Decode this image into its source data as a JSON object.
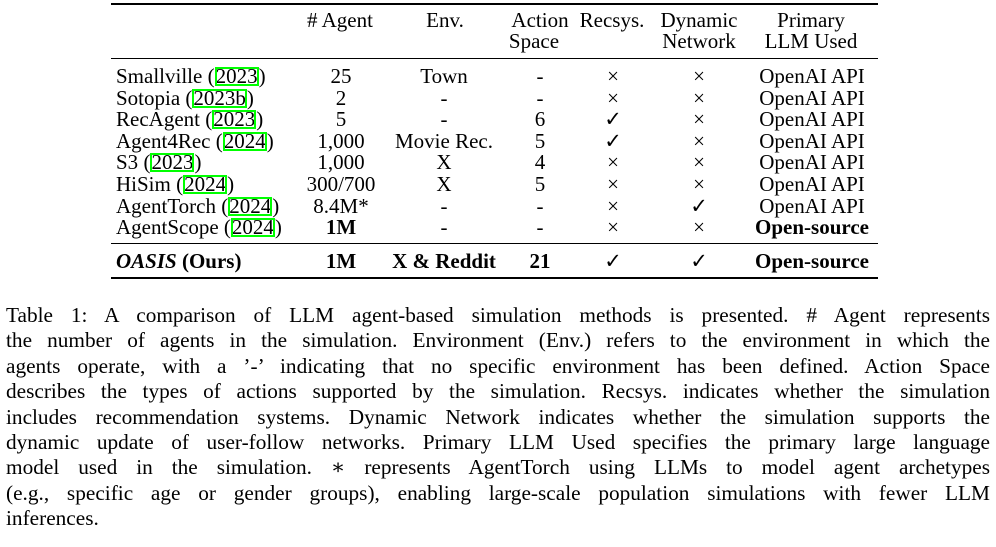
{
  "table": {
    "headers": [
      {
        "lines": [
          "# Agent"
        ]
      },
      {
        "lines": [
          "Env."
        ]
      },
      {
        "lines": [
          "Action",
          "Space"
        ]
      },
      {
        "lines": [
          "Recsys."
        ]
      },
      {
        "lines": [
          "Dynamic",
          "Network"
        ]
      },
      {
        "lines": [
          "Primary",
          "LLM Used"
        ]
      }
    ],
    "rows": [
      {
        "method": "Smallville",
        "year": "2023",
        "agent": "25",
        "env": "Town",
        "action": "-",
        "recsys": "×",
        "dynamic": "×",
        "llm": "OpenAI API"
      },
      {
        "method": "Sotopia",
        "year": "2023b",
        "agent": "2",
        "env": "-",
        "action": "-",
        "recsys": "×",
        "dynamic": "×",
        "llm": "OpenAI API"
      },
      {
        "method": "RecAgent",
        "year": "2023",
        "agent": "5",
        "env": "-",
        "action": "6",
        "recsys": "✓",
        "dynamic": "×",
        "llm": "OpenAI API"
      },
      {
        "method": "Agent4Rec",
        "year": "2024",
        "agent": "1,000",
        "env": "Movie Rec.",
        "action": "5",
        "recsys": "✓",
        "dynamic": "×",
        "llm": "OpenAI API"
      },
      {
        "method": "S3",
        "year": "2023",
        "agent": "1,000",
        "env": "X",
        "action": "4",
        "recsys": "×",
        "dynamic": "×",
        "llm": "OpenAI API"
      },
      {
        "method": "HiSim",
        "year": "2024",
        "agent": "300/700",
        "env": "X",
        "action": "5",
        "recsys": "×",
        "dynamic": "×",
        "llm": "OpenAI API"
      },
      {
        "method": "AgentTorch",
        "year": "2024",
        "agent": "8.4M*",
        "env": "-",
        "action": "-",
        "recsys": "×",
        "dynamic": "✓",
        "llm": "OpenAI API"
      },
      {
        "method": "AgentScope",
        "year": "2024",
        "agent": "1M",
        "env": "-",
        "action": "-",
        "recsys": "×",
        "dynamic": "×",
        "llm": "Open-source"
      }
    ],
    "ours": {
      "method": "OASIS",
      "suffix": "(Ours)",
      "agent": "1M",
      "env": "X & Reddit",
      "action": "21",
      "recsys": "✓",
      "dynamic": "✓",
      "llm": "Open-source"
    }
  },
  "caption_lines": [
    "Table 1: A comparison of LLM agent-based simulation methods is presented. # Agent represents",
    "the number of agents in the simulation. Environment (Env.) refers to the environment in which the",
    "agents operate, with a ’-’ indicating that no specific environment has been defined. Action Space",
    "describes the types of actions supported by the simulation. Recsys. indicates whether the simulation",
    "includes recommendation systems. Dynamic Network indicates whether the simulation supports the",
    "dynamic update of user-follow networks. Primary LLM Used specifies the primary large language",
    "model used in the simulation. ∗ represents AgentTorch using LLMs to model agent archetypes",
    "(e.g., specific age or gender groups), enabling large-scale population simulations with fewer LLM",
    "inferences."
  ]
}
